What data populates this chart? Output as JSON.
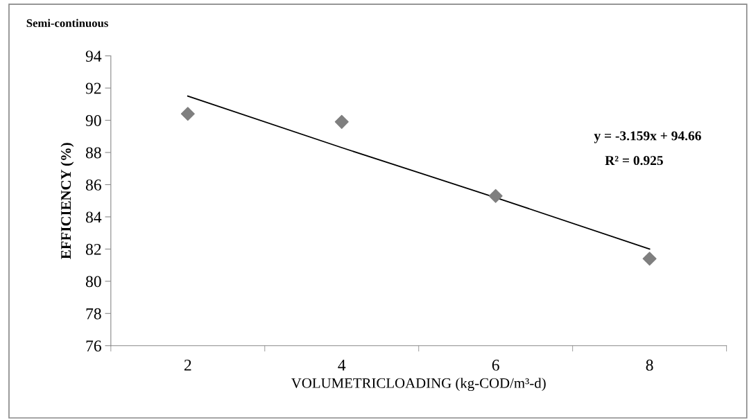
{
  "chart_data": {
    "type": "scatter",
    "title": "Semi-continuous",
    "xlabel": "VOLUMETRICLOADING (kg-COD/m³-d)",
    "ylabel": "EFFICIENCY (%)",
    "categories": [
      "2",
      "4",
      "6",
      "8"
    ],
    "series": [
      {
        "color": "#7f7f7f",
        "marker": "diamond",
        "values": [
          90.4,
          89.9,
          85.3,
          81.4
        ]
      },
      {
        "type": "line",
        "color": "#000000",
        "marker": "none",
        "line_style": "solid",
        "values": [
          91.5,
          88.3,
          85.2,
          82.0
        ]
      }
    ],
    "ylim": [
      76,
      94
    ],
    "yticks": [
      76,
      78,
      80,
      82,
      84,
      86,
      88,
      90,
      92,
      94
    ],
    "grid": false,
    "legend": false,
    "annotations": [
      "y = -3.159x + 94.66",
      "R² = 0.925"
    ]
  }
}
